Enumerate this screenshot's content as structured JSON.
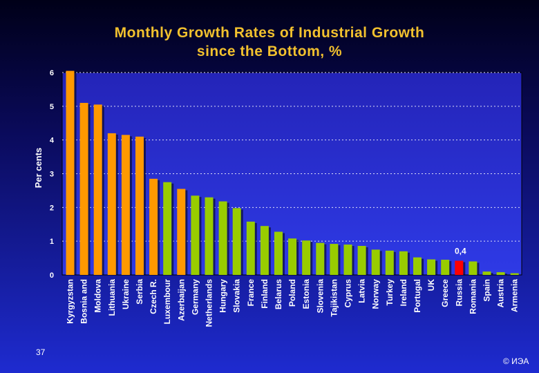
{
  "slide": {
    "title_line1": "Monthly Growth Rates of Industrial Growth",
    "title_line2": "since the Bottom, %",
    "page_number": "37",
    "copyright": "© ИЭА"
  },
  "colors": {
    "background_top": "#000018",
    "background_bottom": "#1e2bd0",
    "plot_area": "#2b2be0",
    "title": "#f2c12e",
    "orange": "#ff9900",
    "green": "#99cc00",
    "red": "#ff0000",
    "grid": "#ffffff",
    "text": "#ffffff"
  },
  "chart_data": {
    "type": "bar",
    "title": "Monthly Growth Rates of Industrial Growth since the Bottom, %",
    "xlabel": "",
    "ylabel": "Per cents",
    "ylim": [
      0,
      6
    ],
    "yticks": [
      "0",
      "1",
      "2",
      "3",
      "4",
      "5",
      "6"
    ],
    "grid": "horizontal dotted",
    "categories": [
      "Kyrgyzstan",
      "Bosnia and",
      "Moldova",
      "Lithuania",
      "Ukraine",
      "Serbia",
      "Czech R.",
      "Luxembour",
      "Azerbaijan",
      "Germany",
      "Netherlands",
      "Hungary",
      "Slovakia",
      "France",
      "Finland",
      "Belarus",
      "Poland",
      "Estonia",
      "Slovenia",
      "Tajikistan",
      "Cyprus",
      "Latvia",
      "Norway",
      "Turkey",
      "Ireland",
      "Portugal",
      "UK",
      "Greece",
      "Russia",
      "Romania",
      "Spain",
      "Austria",
      "Armenia"
    ],
    "values": [
      6.05,
      5.1,
      5.05,
      4.2,
      4.15,
      4.1,
      2.85,
      2.75,
      2.55,
      2.35,
      2.3,
      2.18,
      1.98,
      1.58,
      1.45,
      1.28,
      1.08,
      1.02,
      0.95,
      0.92,
      0.9,
      0.86,
      0.75,
      0.72,
      0.7,
      0.52,
      0.46,
      0.45,
      0.42,
      0.4,
      0.1,
      0.08,
      0.05
    ],
    "bar_colors": [
      "orange",
      "orange",
      "orange",
      "orange",
      "orange",
      "orange",
      "orange",
      "green",
      "orange",
      "green",
      "green",
      "green",
      "green",
      "green",
      "green",
      "green",
      "green",
      "green",
      "green",
      "green",
      "green",
      "green",
      "green",
      "green",
      "green",
      "green",
      "green",
      "green",
      "red",
      "green",
      "green",
      "green",
      "green"
    ],
    "annotation": {
      "category": "Russia",
      "text": "0,4"
    }
  }
}
